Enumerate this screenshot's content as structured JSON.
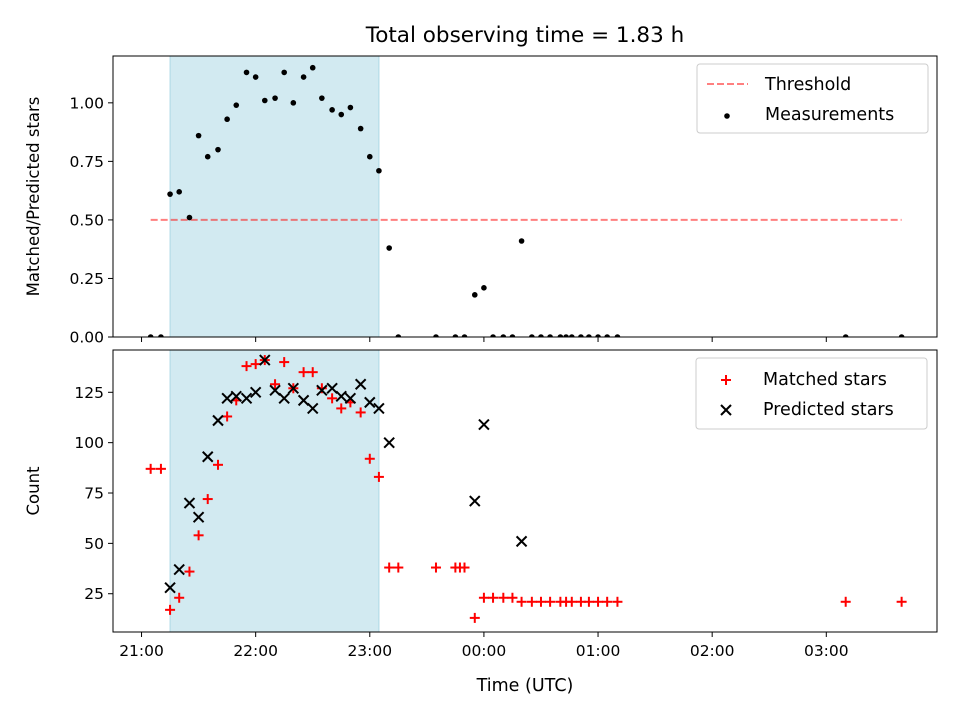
{
  "chart_data": {
    "type": "scatter",
    "title": "Total observing time = 1.83 h",
    "xlabel": "Time (UTC)",
    "x_ticks": [
      {
        "value": 21,
        "label": "21:00"
      },
      {
        "value": 22,
        "label": "22:00"
      },
      {
        "value": 23,
        "label": "23:00"
      },
      {
        "value": 24,
        "label": "00:00"
      },
      {
        "value": 25,
        "label": "01:00"
      },
      {
        "value": 26,
        "label": "02:00"
      },
      {
        "value": 27,
        "label": "03:00"
      }
    ],
    "xlim": [
      20.75,
      27.97
    ],
    "shaded_interval": {
      "x_start": 21.25,
      "x_end": 23.08,
      "color": "#add8e6"
    },
    "top_panel": {
      "ylabel": "Matched/Predicted stars",
      "ylim": [
        0,
        1.2
      ],
      "y_ticks": [
        {
          "value": 0.0,
          "label": "0.00"
        },
        {
          "value": 0.25,
          "label": "0.25"
        },
        {
          "value": 0.5,
          "label": "0.50"
        },
        {
          "value": 0.75,
          "label": "0.75"
        },
        {
          "value": 1.0,
          "label": "1.00"
        }
      ],
      "legend_position": "top-right",
      "threshold": {
        "name": "Threshold",
        "value": 0.5,
        "x_range": [
          21.08,
          27.66
        ],
        "color": "#ff0000",
        "alpha": 0.5
      },
      "measurements": {
        "name": "Measurements",
        "color": "#000000",
        "points": [
          [
            21.08,
            0.0
          ],
          [
            21.17,
            0.0
          ],
          [
            21.25,
            0.61
          ],
          [
            21.33,
            0.62
          ],
          [
            21.42,
            0.51
          ],
          [
            21.5,
            0.86
          ],
          [
            21.58,
            0.77
          ],
          [
            21.67,
            0.8
          ],
          [
            21.75,
            0.93
          ],
          [
            21.83,
            0.99
          ],
          [
            21.92,
            1.13
          ],
          [
            22.0,
            1.11
          ],
          [
            22.08,
            1.01
          ],
          [
            22.17,
            1.02
          ],
          [
            22.25,
            1.13
          ],
          [
            22.33,
            1.0
          ],
          [
            22.42,
            1.11
          ],
          [
            22.5,
            1.15
          ],
          [
            22.58,
            1.02
          ],
          [
            22.67,
            0.97
          ],
          [
            22.75,
            0.95
          ],
          [
            22.83,
            0.98
          ],
          [
            22.92,
            0.89
          ],
          [
            23.0,
            0.77
          ],
          [
            23.08,
            0.71
          ],
          [
            23.17,
            0.38
          ],
          [
            23.25,
            0.0
          ],
          [
            23.58,
            0.0
          ],
          [
            23.75,
            0.0
          ],
          [
            23.83,
            0.0
          ],
          [
            23.92,
            0.18
          ],
          [
            24.0,
            0.21
          ],
          [
            24.08,
            0.0
          ],
          [
            24.17,
            0.0
          ],
          [
            24.25,
            0.0
          ],
          [
            24.33,
            0.41
          ],
          [
            24.42,
            0.0
          ],
          [
            24.5,
            0.0
          ],
          [
            24.58,
            0.0
          ],
          [
            24.67,
            0.0
          ],
          [
            24.72,
            0.0
          ],
          [
            24.77,
            0.0
          ],
          [
            24.85,
            0.0
          ],
          [
            24.92,
            0.0
          ],
          [
            25.0,
            0.0
          ],
          [
            25.08,
            0.0
          ],
          [
            25.17,
            0.0
          ],
          [
            27.17,
            0.0
          ],
          [
            27.66,
            0.0
          ]
        ]
      }
    },
    "bottom_panel": {
      "ylabel": "Count",
      "ylim": [
        6,
        146
      ],
      "y_ticks": [
        {
          "value": 25,
          "label": "25"
        },
        {
          "value": 50,
          "label": "50"
        },
        {
          "value": 75,
          "label": "75"
        },
        {
          "value": 100,
          "label": "100"
        },
        {
          "value": 125,
          "label": "125"
        }
      ],
      "legend_position": "top-right",
      "series": [
        {
          "name": "Matched stars",
          "marker": "+",
          "color": "#ff0000",
          "points": [
            [
              21.08,
              87
            ],
            [
              21.17,
              87
            ],
            [
              21.25,
              17
            ],
            [
              21.33,
              23
            ],
            [
              21.42,
              36
            ],
            [
              21.5,
              54
            ],
            [
              21.58,
              72
            ],
            [
              21.67,
              89
            ],
            [
              21.75,
              113
            ],
            [
              21.83,
              121
            ],
            [
              21.92,
              138
            ],
            [
              22.0,
              139
            ],
            [
              22.08,
              141
            ],
            [
              22.17,
              129
            ],
            [
              22.25,
              140
            ],
            [
              22.33,
              127
            ],
            [
              22.42,
              135
            ],
            [
              22.5,
              135
            ],
            [
              22.58,
              127
            ],
            [
              22.67,
              122
            ],
            [
              22.75,
              117
            ],
            [
              22.83,
              120
            ],
            [
              22.92,
              115
            ],
            [
              23.0,
              92
            ],
            [
              23.08,
              83
            ],
            [
              23.17,
              38
            ],
            [
              23.25,
              38
            ],
            [
              23.58,
              38
            ],
            [
              23.75,
              38
            ],
            [
              23.79,
              38
            ],
            [
              23.83,
              38
            ],
            [
              23.92,
              13
            ],
            [
              24.0,
              23
            ],
            [
              24.08,
              23
            ],
            [
              24.17,
              23
            ],
            [
              24.25,
              23
            ],
            [
              24.33,
              21
            ],
            [
              24.42,
              21
            ],
            [
              24.5,
              21
            ],
            [
              24.58,
              21
            ],
            [
              24.67,
              21
            ],
            [
              24.72,
              21
            ],
            [
              24.77,
              21
            ],
            [
              24.85,
              21
            ],
            [
              24.92,
              21
            ],
            [
              25.0,
              21
            ],
            [
              25.08,
              21
            ],
            [
              25.17,
              21
            ],
            [
              27.17,
              21
            ],
            [
              27.66,
              21
            ]
          ]
        },
        {
          "name": "Predicted stars",
          "marker": "x",
          "color": "#000000",
          "points": [
            [
              21.25,
              28
            ],
            [
              21.33,
              37
            ],
            [
              21.42,
              70
            ],
            [
              21.5,
              63
            ],
            [
              21.58,
              93
            ],
            [
              21.67,
              111
            ],
            [
              21.75,
              122
            ],
            [
              21.83,
              123
            ],
            [
              21.92,
              122
            ],
            [
              22.0,
              125
            ],
            [
              22.08,
              141
            ],
            [
              22.17,
              126
            ],
            [
              22.25,
              122
            ],
            [
              22.33,
              127
            ],
            [
              22.42,
              121
            ],
            [
              22.5,
              117
            ],
            [
              22.58,
              126
            ],
            [
              22.67,
              127
            ],
            [
              22.75,
              123
            ],
            [
              22.83,
              122
            ],
            [
              22.92,
              129
            ],
            [
              23.0,
              120
            ],
            [
              23.08,
              117
            ],
            [
              23.17,
              100
            ],
            [
              23.92,
              71
            ],
            [
              24.0,
              109
            ],
            [
              24.33,
              51
            ]
          ]
        }
      ]
    }
  }
}
